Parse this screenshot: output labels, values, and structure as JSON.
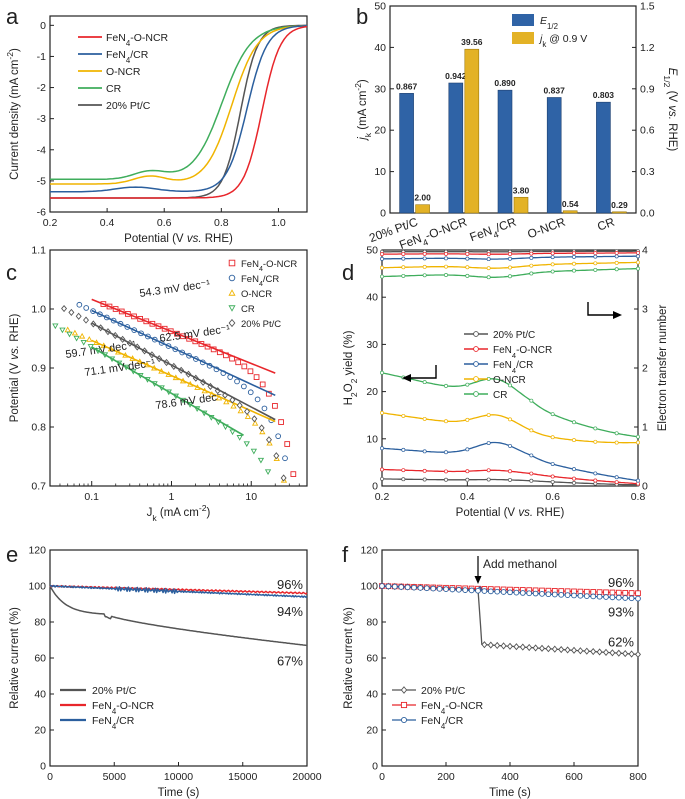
{
  "colors": {
    "red": "#e8262b",
    "blue": "#2b5f9e",
    "yellow": "#f0b400",
    "green": "#3fad5c",
    "gray": "#555555",
    "axis": "#222222",
    "barblue": "#2f63a6",
    "bargold": "#e3b226"
  },
  "chart_data": [
    {
      "panel": "a",
      "type": "line",
      "xlabel": "Potential (V vs. RHE)",
      "ylabel": "Current density (mA cm-2)",
      "xlim": [
        0.2,
        1.1
      ],
      "ylim": [
        -6,
        0.3
      ],
      "xticks": [
        "0.2",
        "0.4",
        "0.6",
        "0.8",
        "1.0"
      ],
      "yticks": [
        "0",
        "-1",
        "-2",
        "-3",
        "-4",
        "-5",
        "-6"
      ],
      "series": [
        {
          "name": "FeN4-O-NCR",
          "legend": "FeN₄-O-NCR",
          "color": "red",
          "plateau": -5.55,
          "e_half": 0.942,
          "slope": 0.032
        },
        {
          "name": "FeN4/CR",
          "legend": "FeN₄/CR",
          "color": "blue",
          "plateau": -5.35,
          "e_half": 0.89,
          "slope": 0.035
        },
        {
          "name": "O-NCR",
          "legend": "O-NCR",
          "color": "yellow",
          "plateau": -5.1,
          "e_half": 0.837,
          "slope": 0.045
        },
        {
          "name": "CR",
          "legend": "CR",
          "color": "green",
          "plateau": -4.95,
          "e_half": 0.803,
          "slope": 0.05
        },
        {
          "name": "20% Pt/C",
          "legend": "20% Pt/C",
          "color": "gray",
          "plateau": -5.55,
          "e_half": 0.867,
          "slope": 0.03
        }
      ]
    },
    {
      "panel": "b",
      "type": "bar",
      "categories": [
        "20% Pt/C",
        "FeN₄-O-NCR",
        "FeN₄/CR",
        "O-NCR",
        "CR"
      ],
      "series": [
        {
          "name": "E1/2",
          "legend": "E1/2",
          "axis": "right",
          "values": [
            0.867,
            0.942,
            0.89,
            0.837,
            0.803
          ],
          "labels": [
            "0.867",
            "0.942",
            "0.890",
            "0.837",
            "0.803"
          ]
        },
        {
          "name": "jk @ 0.9 V",
          "legend": "jk @ 0.9 V",
          "axis": "left",
          "values": [
            2.0,
            39.56,
            3.8,
            0.54,
            0.29
          ],
          "labels": [
            "2.00",
            "39.56",
            "3.80",
            "0.54",
            "0.29"
          ]
        }
      ],
      "ylabel_left": "jk (mA cm-2)",
      "ylabel_right": "E1/2 (V vs. RHE)",
      "ylim_left": [
        0,
        50
      ],
      "ylim_right": [
        0,
        1.5
      ],
      "yticks_left": [
        "0",
        "10",
        "20",
        "30",
        "40",
        "50"
      ],
      "yticks_right": [
        "0.0",
        "0.3",
        "0.6",
        "0.9",
        "1.2",
        "1.5"
      ]
    },
    {
      "panel": "c",
      "type": "scatter",
      "xlabel": "Jk (mA cm-2)",
      "ylabel": "Potential (V vs. RHE)",
      "xscale": "log",
      "xlim": [
        0.03,
        50
      ],
      "ylim": [
        0.7,
        1.1
      ],
      "xticks": [
        "0.1",
        "1",
        "10"
      ],
      "yticks": [
        "0.7",
        "0.8",
        "0.9",
        "1.0",
        "1.1"
      ],
      "series": [
        {
          "name": "FeN4-O-NCR",
          "legend": "FeN₄-O-NCR",
          "color": "red",
          "marker": "square",
          "x_range": [
            0.14,
            48
          ],
          "y_at_1": 0.962,
          "tafel": "54.3 mV dec⁻¹"
        },
        {
          "name": "FeN4/CR",
          "legend": "FeN₄/CR",
          "color": "blue",
          "marker": "circle",
          "x_range": [
            0.07,
            48
          ],
          "y_at_1": 0.935,
          "tafel": "62.5 mV dec⁻¹"
        },
        {
          "name": "O-NCR",
          "legend": "O-NCR",
          "color": "yellow",
          "marker": "triangle-up",
          "x_range": [
            0.05,
            48
          ],
          "y_at_1": 0.887,
          "tafel": "59.7 mV dec⁻¹"
        },
        {
          "name": "CR",
          "legend": "CR",
          "color": "green",
          "marker": "triangle-down",
          "x_range": [
            0.035,
            30
          ],
          "y_at_1": 0.857,
          "tafel": "78.6 mV dec⁻¹"
        },
        {
          "name": "20% Pt/C",
          "legend": "20% Pt/C",
          "color": "gray",
          "marker": "diamond",
          "x_range": [
            0.045,
            48
          ],
          "y_at_1": 0.905,
          "tafel": "71.1 mV dec⁻¹"
        }
      ]
    },
    {
      "panel": "d",
      "type": "line",
      "xlabel": "Potential (V vs. RHE)",
      "ylabel": "H2O2 yield (%)",
      "ylabel_right": "Electron transfer number",
      "xlim": [
        0.2,
        0.8
      ],
      "ylim": [
        0,
        50
      ],
      "ylim_right": [
        0,
        4
      ],
      "xticks": [
        "0.2",
        "0.4",
        "0.6",
        "0.8"
      ],
      "yticks": [
        "0",
        "10",
        "20",
        "30",
        "40",
        "50"
      ],
      "yticks_right": [
        "0",
        "1",
        "2",
        "3",
        "4"
      ],
      "series": [
        {
          "name": "20% Pt/C",
          "legend": "20% Pt/C",
          "color": "gray",
          "h2o2_start": 1.5,
          "h2o2_bump": 0.2,
          "n_start": 3.97
        },
        {
          "name": "FeN4-O-NCR",
          "legend": "FeN₄-O-NCR",
          "color": "red",
          "h2o2_start": 3.5,
          "h2o2_bump": 0.6,
          "n_start": 3.93
        },
        {
          "name": "FeN4/CR",
          "legend": "FeN₄/CR",
          "color": "blue",
          "h2o2_start": 8,
          "h2o2_bump": 3,
          "n_start": 3.85
        },
        {
          "name": "O-NCR",
          "legend": "O-NCR",
          "color": "yellow",
          "h2o2_start": 15.5,
          "h2o2_bump": 3,
          "n_start": 3.7
        },
        {
          "name": "CR",
          "legend": "CR",
          "color": "green",
          "h2o2_start": 24,
          "h2o2_bump": 4,
          "n_start": 3.55
        }
      ]
    },
    {
      "panel": "e",
      "type": "line",
      "xlabel": "Time (s)",
      "ylabel": "Relative current (%)",
      "xlim": [
        0,
        20000
      ],
      "ylim": [
        0,
        120
      ],
      "xticks": [
        "0",
        "5000",
        "10000",
        "15000",
        "20000"
      ],
      "yticks": [
        "0",
        "20",
        "40",
        "60",
        "80",
        "100",
        "120"
      ],
      "series": [
        {
          "name": "20% Pt/C",
          "legend": "20% Pt/C",
          "color": "gray",
          "final": 67,
          "label": "67%"
        },
        {
          "name": "FeN4-O-NCR",
          "legend": "FeN₄-O-NCR",
          "color": "red",
          "final": 96,
          "label": "96%"
        },
        {
          "name": "FeN4/CR",
          "legend": "FeN₄/CR",
          "color": "blue",
          "final": 94,
          "label": "94%"
        }
      ]
    },
    {
      "panel": "f",
      "type": "scatter",
      "xlabel": "Time (s)",
      "ylabel": "Relative current (%)",
      "xlim": [
        0,
        800
      ],
      "ylim": [
        0,
        120
      ],
      "xticks": [
        "0",
        "200",
        "400",
        "600",
        "800"
      ],
      "yticks": [
        "0",
        "20",
        "40",
        "60",
        "80",
        "100",
        "120"
      ],
      "annotation": "Add methanol",
      "methanol_time": 300,
      "series": [
        {
          "name": "20% Pt/C",
          "legend": "20% Pt/C",
          "color": "gray",
          "marker": "diamond",
          "final": 62,
          "label": "62%"
        },
        {
          "name": "FeN4-O-NCR",
          "legend": "FeN₄-O-NCR",
          "color": "red",
          "marker": "square",
          "final": 96,
          "label": "96%"
        },
        {
          "name": "FeN4/CR",
          "legend": "FeN₄/CR",
          "color": "blue",
          "marker": "circle",
          "final": 93,
          "label": "93%"
        }
      ]
    }
  ]
}
